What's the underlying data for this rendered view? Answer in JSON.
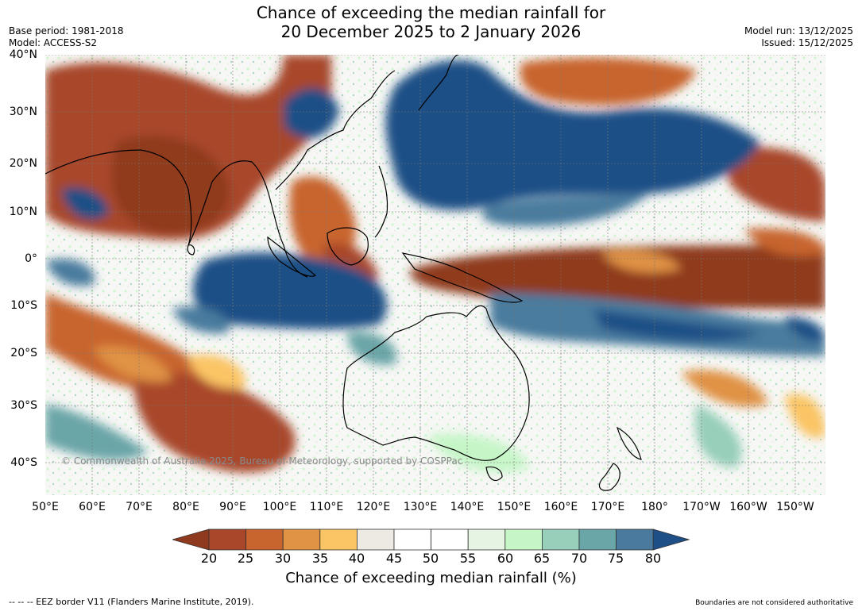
{
  "title": {
    "line1": "Chance of exceeding the median rainfall for",
    "line2": "20 December 2025 to 2 January 2026"
  },
  "meta_left": {
    "base_period": "Base period: 1981-2018",
    "model": "Model: ACCESS-S2"
  },
  "meta_right": {
    "model_run": "Model run: 13/12/2025",
    "issued": "Issued: 15/12/2025"
  },
  "map": {
    "lat_labels": [
      "40°N",
      "30°N",
      "20°N",
      "10°N",
      "0°",
      "10°S",
      "20°S",
      "30°S",
      "40°S"
    ],
    "lon_labels": [
      "50°E",
      "60°E",
      "70°E",
      "80°E",
      "90°E",
      "100°E",
      "110°E",
      "120°E",
      "130°E",
      "140°E",
      "150°E",
      "160°E",
      "170°E",
      "180°",
      "170°W",
      "160°W",
      "150°W"
    ],
    "copyright": "© Commonwealth of Australia 2025, Bureau of Meteorology, supported by COSPPac"
  },
  "legend": {
    "ticks": [
      "20",
      "25",
      "30",
      "35",
      "40",
      "45",
      "50",
      "55",
      "60",
      "65",
      "70",
      "75",
      "80"
    ],
    "colors": [
      "#8f3a1e",
      "#a8472a",
      "#c8652e",
      "#e09245",
      "#fbc565",
      "#ede9e3",
      "#ffffff",
      "#ffffff",
      "#e6f4e4",
      "#c6f6c8",
      "#97cfba",
      "#6aa5a8",
      "#4a7b9e",
      "#1e4f86"
    ],
    "label": "Chance of exceeding median rainfall (%)"
  },
  "footer": {
    "eez": "--  --  -- EEZ border V11 (Flanders Marine Institute, 2019).",
    "boundaries": "Boundaries are not considered authoritative"
  }
}
